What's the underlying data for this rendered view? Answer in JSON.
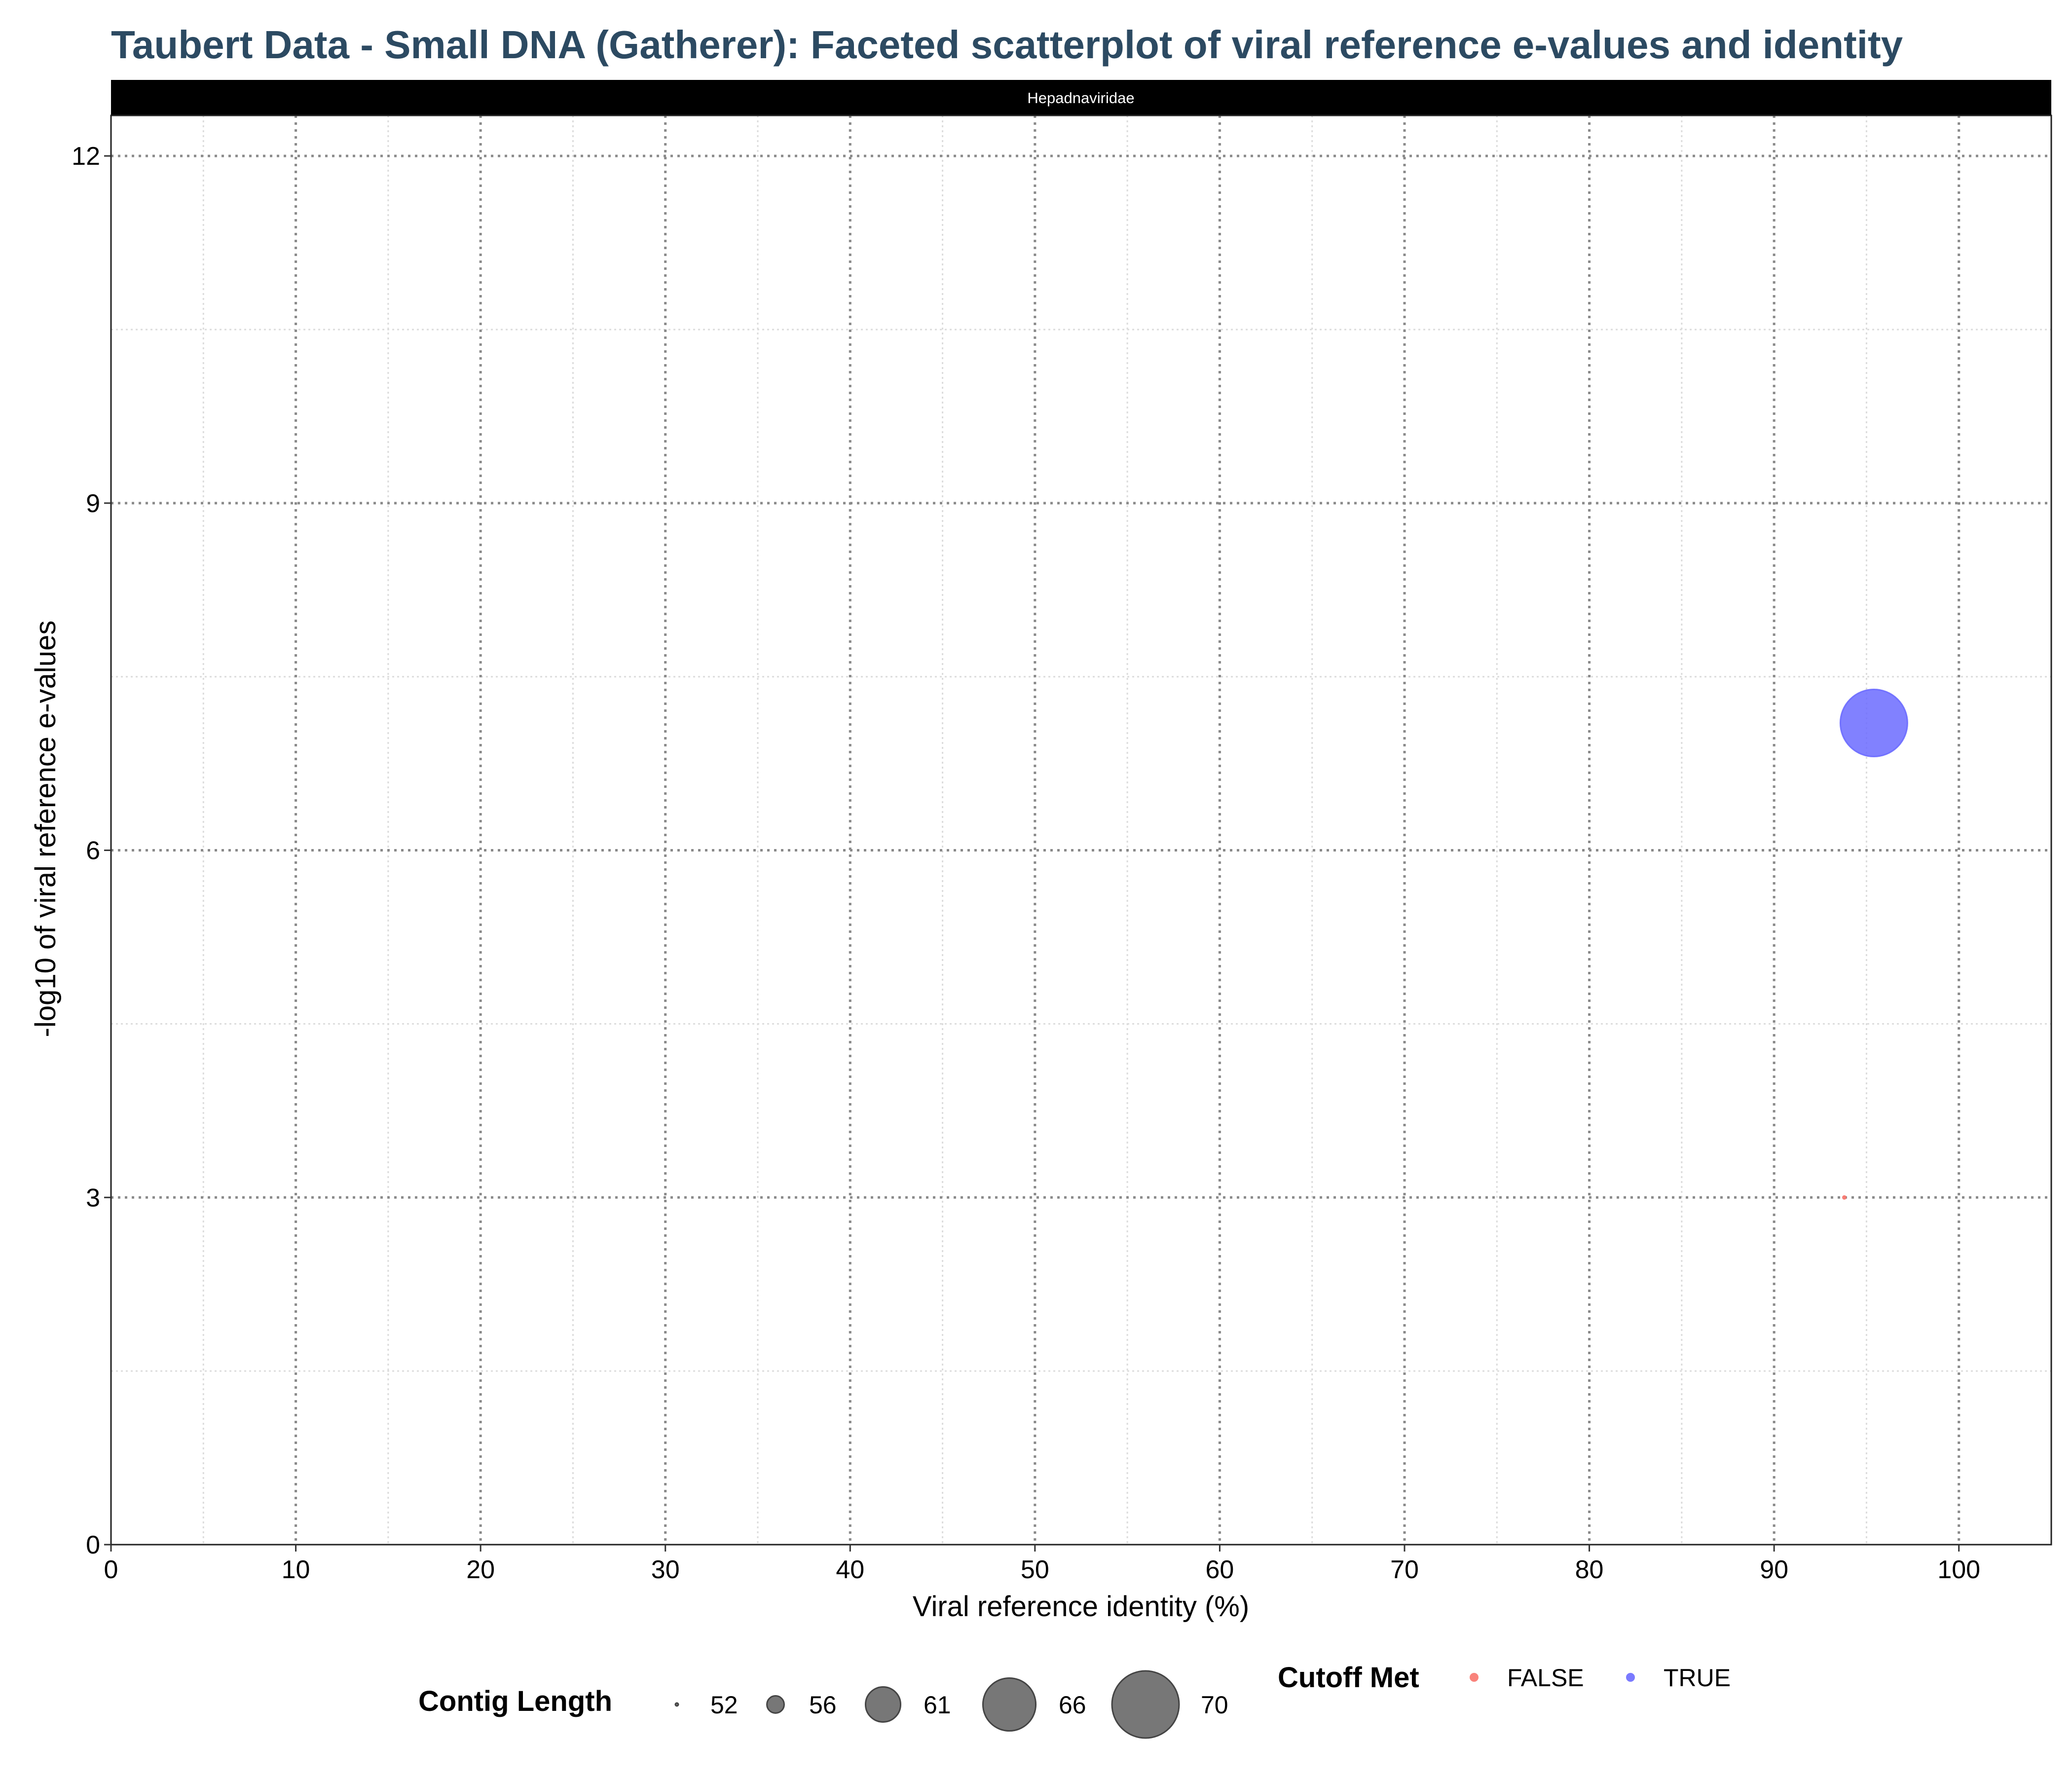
{
  "chart_data": {
    "type": "scatter",
    "title": "Taubert Data - Small DNA (Gatherer): Faceted scatterplot of viral reference e-values and identity",
    "facet": "Hepadnaviridae",
    "xlabel": "Viral reference identity (%)",
    "ylabel": "-log10 of viral reference e-values",
    "xlim": [
      0,
      105
    ],
    "ylim": [
      0,
      12.35
    ],
    "x_ticks": [
      0,
      10,
      20,
      30,
      40,
      50,
      60,
      70,
      80,
      90,
      100
    ],
    "y_ticks": [
      0,
      3,
      6,
      9,
      12
    ],
    "grid": true,
    "legend_placement": "bottom",
    "points": [
      {
        "x": 95.4,
        "y": 7.1,
        "size": 70,
        "cutoff_met": "TRUE"
      },
      {
        "x": 93.8,
        "y": 3.0,
        "size": 52,
        "cutoff_met": "FALSE"
      }
    ],
    "size_legend": {
      "title": "Contig Length",
      "values": [
        52,
        56,
        61,
        66,
        70
      ],
      "labels": [
        "52",
        "56",
        "61",
        "66",
        "70"
      ]
    },
    "color_legend": {
      "title": "Cutoff Met",
      "entries": [
        {
          "label": "FALSE",
          "color": "#f8766d"
        },
        {
          "label": "TRUE",
          "color": "#6b6bff"
        }
      ]
    }
  }
}
